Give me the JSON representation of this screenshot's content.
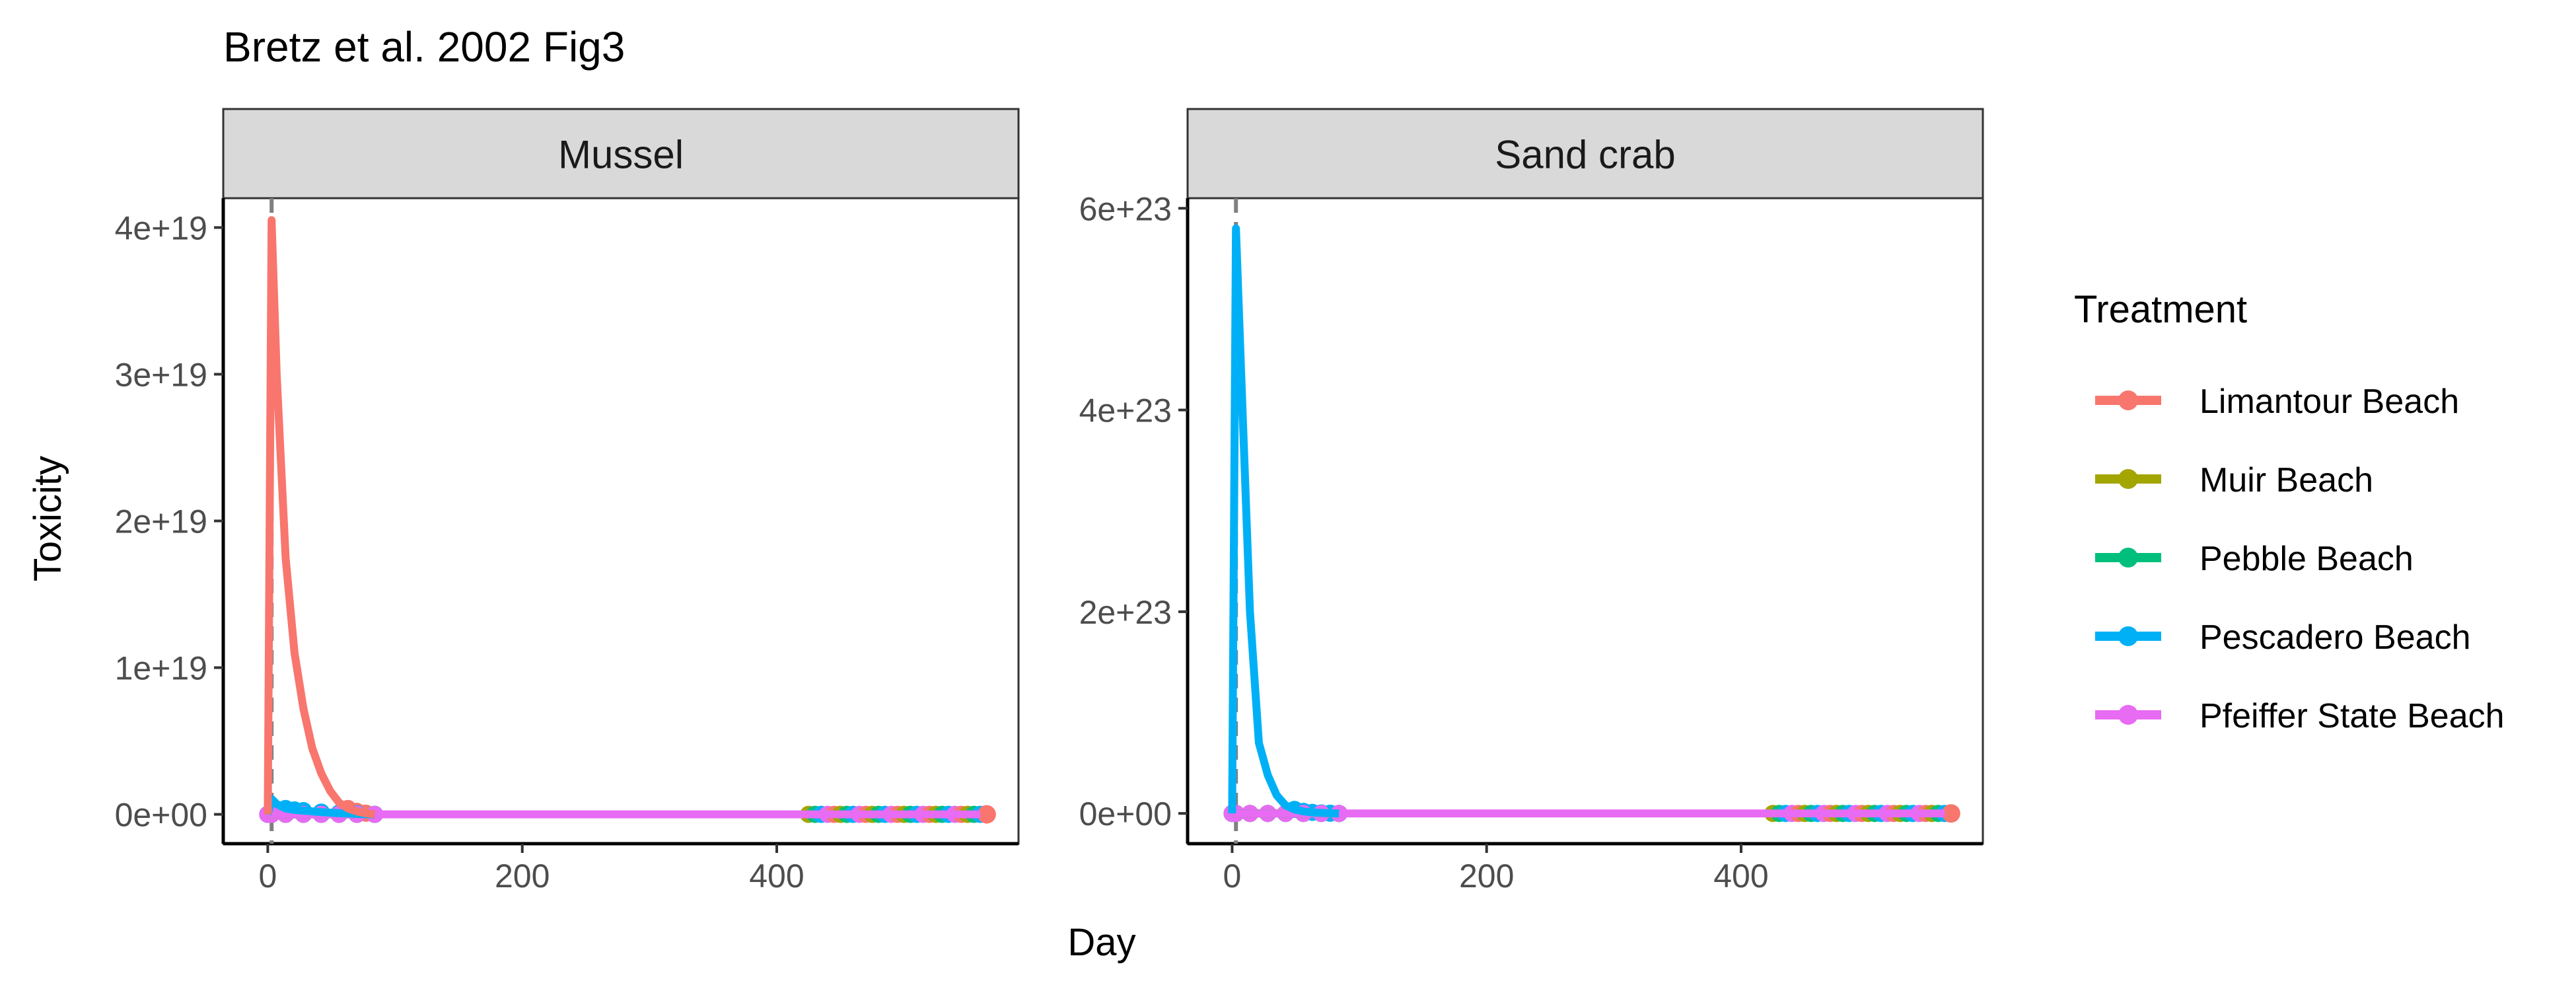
{
  "title": "Bretz et al. 2002 Fig3",
  "xlabel": "Day",
  "ylabel": "Toxicity",
  "legend": {
    "title": "Treatment",
    "entries": [
      {
        "label": "Limantour Beach",
        "color": "#F8766D"
      },
      {
        "label": "Muir Beach",
        "color": "#A3A500"
      },
      {
        "label": "Pebble Beach",
        "color": "#00BF7D"
      },
      {
        "label": "Pescadero Beach",
        "color": "#00B0F6"
      },
      {
        "label": "Pfeiffer State Beach",
        "color": "#E76BF3"
      }
    ]
  },
  "chart_data": [
    {
      "type": "line",
      "panel": "Mussel",
      "xlim": [
        -35,
        590
      ],
      "ylim": [
        -2e+18,
        4.2e+19
      ],
      "x_ticks": [
        0,
        200,
        400
      ],
      "x_tick_labels": [
        "0",
        "200",
        "400"
      ],
      "y_ticks": [
        0,
        1e+19,
        2e+19,
        3e+19,
        4e+19
      ],
      "y_tick_labels": [
        "0e+00",
        "1e+19",
        "2e+19",
        "3e+19",
        "4e+19"
      ],
      "vline_x": 3,
      "series": [
        {
          "name": "Limantour Beach",
          "color": "#F8766D",
          "x": [
            0,
            3,
            7,
            14,
            21,
            28,
            35,
            42,
            49,
            56,
            63,
            70,
            77,
            84
          ],
          "y": [
            0,
            4.05e+19,
            3e+19,
            1.75e+19,
            1.1e+19,
            7.2e+18,
            4.5e+18,
            2.8e+18,
            1.6e+18,
            8e+17,
            4e+17,
            2e+17,
            8e+16,
            0
          ]
        },
        {
          "name": "Muir Beach",
          "color": "#A3A500",
          "x": [
            0,
            3,
            14,
            28,
            42,
            56,
            70,
            84
          ],
          "y": [
            0,
            0,
            0,
            0,
            0,
            0,
            0,
            0
          ]
        },
        {
          "name": "Pebble Beach",
          "color": "#00BF7D",
          "x": [
            0,
            3,
            14,
            28,
            42,
            56,
            70,
            84
          ],
          "y": [
            0,
            0,
            0,
            0,
            0,
            0,
            0,
            0
          ]
        },
        {
          "name": "Pescadero Beach",
          "color": "#00B0F6",
          "x": [
            0,
            3,
            7,
            14,
            21,
            28,
            42,
            56,
            70,
            84
          ],
          "y": [
            0,
            1.05e+18,
            7e+17,
            4e+17,
            3e+17,
            2.5e+17,
            1.5e+17,
            8e+16,
            3e+16,
            0
          ]
        },
        {
          "name": "Pfeiffer State Beach",
          "color": "#E76BF3",
          "x": [
            0,
            3,
            14,
            28,
            42,
            56,
            70,
            84,
            100,
            200,
            300,
            400,
            500,
            560
          ],
          "y": [
            0,
            0,
            0,
            0,
            0,
            0,
            0,
            0,
            0,
            0,
            0,
            0,
            0,
            0
          ]
        }
      ],
      "cluster_points": {
        "x_start": 425,
        "x_end": 565,
        "step": 5
      }
    },
    {
      "type": "line",
      "panel": "Sand crab",
      "xlim": [
        -35,
        590
      ],
      "ylim": [
        -3e+22,
        6.1e+23
      ],
      "x_ticks": [
        0,
        200,
        400
      ],
      "x_tick_labels": [
        "0",
        "200",
        "400"
      ],
      "y_ticks": [
        0,
        2e+23,
        4e+23,
        6e+23
      ],
      "y_tick_labels": [
        "0e+00",
        "2e+23",
        "4e+23",
        "6e+23"
      ],
      "vline_x": 3,
      "series": [
        {
          "name": "Limantour Beach",
          "color": "#F8766D",
          "x": [
            0,
            3,
            14,
            28,
            42,
            56,
            70,
            84
          ],
          "y": [
            0,
            0,
            0,
            0,
            0,
            0,
            0,
            0
          ]
        },
        {
          "name": "Muir Beach",
          "color": "#A3A500",
          "x": [
            0,
            3,
            14,
            28,
            42,
            56,
            70,
            84
          ],
          "y": [
            0,
            0,
            0,
            0,
            0,
            0,
            0,
            0
          ]
        },
        {
          "name": "Pebble Beach",
          "color": "#00BF7D",
          "x": [
            0,
            3,
            14,
            28,
            42,
            56,
            70,
            84
          ],
          "y": [
            0,
            0,
            0,
            0,
            0,
            0,
            0,
            0
          ]
        },
        {
          "name": "Pescadero Beach",
          "color": "#00B0F6",
          "x": [
            0,
            3,
            7,
            14,
            21,
            28,
            35,
            42,
            49,
            56,
            63,
            70,
            77,
            84
          ],
          "y": [
            0,
            5.8e+23,
            4.4e+23,
            2e+23,
            7e+22,
            3.8e+22,
            1.8e+22,
            8e+21,
            4e+21,
            2e+21,
            1e+21,
            5e+20,
            2e+20,
            0
          ]
        },
        {
          "name": "Pfeiffer State Beach",
          "color": "#E76BF3",
          "x": [
            0,
            3,
            14,
            28,
            42,
            56,
            70,
            84,
            100,
            200,
            300,
            400,
            500,
            560
          ],
          "y": [
            0,
            0,
            0,
            0,
            0,
            0,
            0,
            0,
            0,
            0,
            0,
            0,
            0,
            0
          ]
        }
      ],
      "cluster_points": {
        "x_start": 425,
        "x_end": 565,
        "step": 5
      }
    }
  ]
}
